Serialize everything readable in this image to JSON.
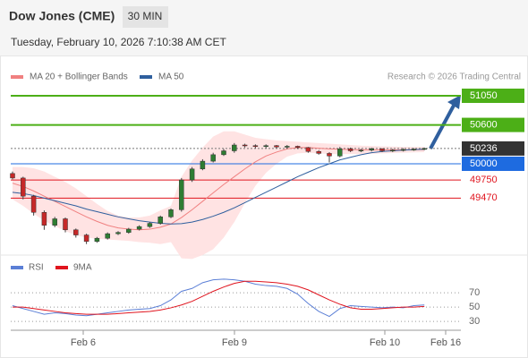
{
  "chart_data": {
    "type": "candlestick",
    "title": "Dow Jones (CME)",
    "interval": "30 MIN",
    "subtitle": "Tuesday, February 10, 2026 7:10:38 AM CET",
    "source": "Research © 2026 Trading Central",
    "x_labels": [
      "Feb 6",
      "Feb 9",
      "Feb 10",
      "Feb 16"
    ],
    "ylim": [
      48590,
      51216
    ],
    "up_color": "#2e7d32",
    "down_color": "#c62828",
    "band_color": "#ffdede",
    "candles": {
      "open": [
        49850,
        49780,
        49500,
        49250,
        49050,
        49150,
        48980,
        48900,
        48800,
        48850,
        48920,
        48940,
        48990,
        49030,
        49080,
        49180,
        49290,
        49750,
        49920,
        50040,
        50140,
        50200,
        50290,
        50280,
        50270,
        50280,
        50260,
        50270,
        50250,
        50190,
        50160,
        50120,
        50230,
        50200,
        50210,
        50230,
        50200,
        50210,
        50220,
        50225
      ],
      "high": [
        49880,
        49800,
        49520,
        49280,
        49180,
        49170,
        49000,
        48920,
        48870,
        48940,
        48960,
        49010,
        49050,
        49100,
        49200,
        49310,
        49780,
        49950,
        50070,
        50170,
        50230,
        50320,
        50310,
        50300,
        50300,
        50290,
        50290,
        50280,
        50260,
        50210,
        50180,
        50260,
        50250,
        50230,
        50250,
        50240,
        50230,
        50240,
        50240,
        50250
      ],
      "low": [
        49760,
        49450,
        49200,
        48980,
        49020,
        48940,
        48860,
        48760,
        48780,
        48830,
        48900,
        48920,
        48970,
        49010,
        49060,
        49160,
        49260,
        49720,
        49900,
        50020,
        50120,
        50170,
        50250,
        50240,
        50240,
        50240,
        50230,
        50230,
        50170,
        50140,
        50020,
        50100,
        50180,
        50180,
        50190,
        50180,
        50180,
        50190,
        50200,
        50210
      ],
      "close": [
        49780,
        49500,
        49250,
        49050,
        49150,
        48980,
        48900,
        48800,
        48850,
        48920,
        48940,
        48990,
        49030,
        49080,
        49180,
        49290,
        49750,
        49920,
        50040,
        50140,
        50200,
        50290,
        50280,
        50270,
        50280,
        50260,
        50270,
        50250,
        50190,
        50160,
        50120,
        50230,
        50200,
        50210,
        50230,
        50200,
        50210,
        50220,
        50225,
        50236
      ]
    },
    "overlays": [
      {
        "name": "MA 20 + Bollinger Bands",
        "color": "#f08080",
        "values": [
          49700,
          49650,
          49580,
          49500,
          49420,
          49340,
          49260,
          49180,
          49110,
          49050,
          49010,
          48990,
          48980,
          48990,
          49020,
          49070,
          49170,
          49290,
          49420,
          49550,
          49680,
          49800,
          49920,
          50030,
          50120,
          50180,
          50230,
          50250,
          50250,
          50240,
          50230,
          50225,
          50220,
          50215,
          50215,
          50215,
          50215,
          50215,
          50218,
          50220
        ],
        "upper": [
          49950,
          49950,
          49930,
          49880,
          49800,
          49720,
          49620,
          49500,
          49380,
          49270,
          49200,
          49170,
          49170,
          49200,
          49280,
          49350,
          49800,
          50050,
          50250,
          50420,
          50500,
          50500,
          50450,
          50400,
          50380,
          50360,
          50350,
          50340,
          50330,
          50320,
          50310,
          50300,
          50290,
          50280,
          50275,
          50270,
          50265,
          50260,
          50260,
          50260
        ],
        "lower": [
          49450,
          49350,
          49230,
          49120,
          49040,
          48960,
          48900,
          48860,
          48840,
          48830,
          48820,
          48810,
          48790,
          48780,
          48760,
          48790,
          48540,
          48530,
          48590,
          48680,
          48860,
          49100,
          49390,
          49660,
          49860,
          50000,
          50110,
          50160,
          50170,
          50160,
          50150,
          50150,
          50150,
          50150,
          50155,
          50160,
          50165,
          50170,
          50176,
          50180
        ]
      },
      {
        "name": "MA 50",
        "color": "#2f5f9e",
        "values": [
          49560,
          49540,
          49510,
          49470,
          49430,
          49390,
          49350,
          49300,
          49260,
          49220,
          49180,
          49150,
          49120,
          49100,
          49080,
          49070,
          49075,
          49100,
          49140,
          49190,
          49250,
          49320,
          49400,
          49480,
          49560,
          49640,
          49720,
          49800,
          49870,
          49940,
          50000,
          50060,
          50100,
          50140,
          50170,
          50190,
          50200,
          50210,
          50220,
          50225
        ]
      }
    ],
    "levels": [
      {
        "value": 51050,
        "color": "#4caf17",
        "boxed": true,
        "line_style": "solid"
      },
      {
        "value": 50600,
        "color": "#4caf17",
        "boxed": true,
        "line_style": "solid"
      },
      {
        "value": 50236,
        "color": "#333333",
        "boxed": true,
        "line_style": "dotted"
      },
      {
        "value": 50000,
        "color": "#1e6be0",
        "boxed": true,
        "line_style": "solid"
      },
      {
        "value": 49750,
        "color": "#e0141e",
        "boxed": false,
        "line_style": "solid"
      },
      {
        "value": 49470,
        "color": "#e0141e",
        "boxed": false,
        "line_style": "solid"
      }
    ],
    "rsi": {
      "ylim": [
        19,
        105
      ],
      "yticks": [
        70,
        50,
        30
      ],
      "series": [
        {
          "name": "RSI",
          "color": "#5b7fd6",
          "values": [
            52,
            48,
            44,
            40,
            42,
            41,
            39,
            38,
            40,
            42,
            44,
            46,
            47,
            48,
            52,
            60,
            72,
            76,
            84,
            88,
            89,
            88,
            86,
            82,
            80,
            79,
            76,
            68,
            55,
            44,
            37,
            48,
            52,
            51,
            50,
            49,
            50,
            49,
            52,
            53
          ]
        },
        {
          "name": "9MA",
          "color": "#e0141e",
          "values": [
            50,
            50,
            48,
            46,
            44,
            42,
            41,
            40,
            40,
            40,
            41,
            42,
            43,
            44,
            46,
            49,
            53,
            58,
            65,
            72,
            78,
            83,
            86,
            86,
            85,
            84,
            82,
            79,
            74,
            67,
            60,
            54,
            49,
            47,
            47,
            48,
            49,
            50,
            50,
            51
          ]
        }
      ]
    }
  }
}
